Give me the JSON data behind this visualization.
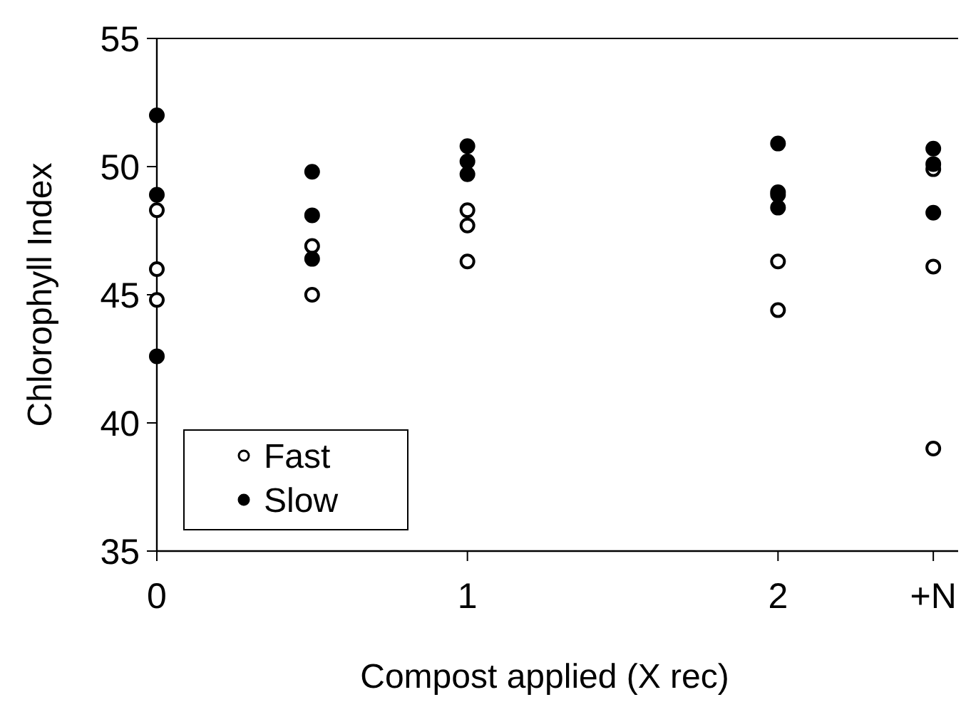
{
  "chart_data": {
    "type": "scatter",
    "xlabel": "Compost applied (X rec)",
    "ylabel": "Chlorophyll Index",
    "xlim": [
      0,
      2.58
    ],
    "xticks": [
      0,
      1,
      2,
      {
        "value": 2.5,
        "label": "+N"
      }
    ],
    "ylim": [
      35,
      55
    ],
    "yticks": [
      35,
      40,
      45,
      50,
      55
    ],
    "grid": false,
    "legend": "bottom left",
    "marker": "circle",
    "series": [
      {
        "name": "Fast",
        "color": "#ffffff",
        "x": [
          0,
          0,
          0,
          0.5,
          0.5,
          1,
          1,
          1,
          2,
          2,
          2.5,
          2.5,
          2.5
        ],
        "values": [
          48.3,
          46.0,
          44.8,
          46.9,
          45.0,
          48.3,
          47.7,
          46.3,
          46.3,
          44.4,
          49.9,
          46.1,
          39.0
        ]
      },
      {
        "name": "Slow",
        "color": "#000000",
        "x": [
          0,
          0,
          0,
          0.5,
          0.5,
          0.5,
          1,
          1,
          1,
          2,
          2,
          2,
          2,
          2.5,
          2.5,
          2.5
        ],
        "values": [
          52.0,
          48.9,
          42.6,
          49.8,
          48.1,
          46.4,
          50.8,
          50.2,
          49.7,
          50.9,
          49.0,
          48.9,
          48.4,
          50.7,
          50.1,
          48.2
        ]
      }
    ]
  }
}
